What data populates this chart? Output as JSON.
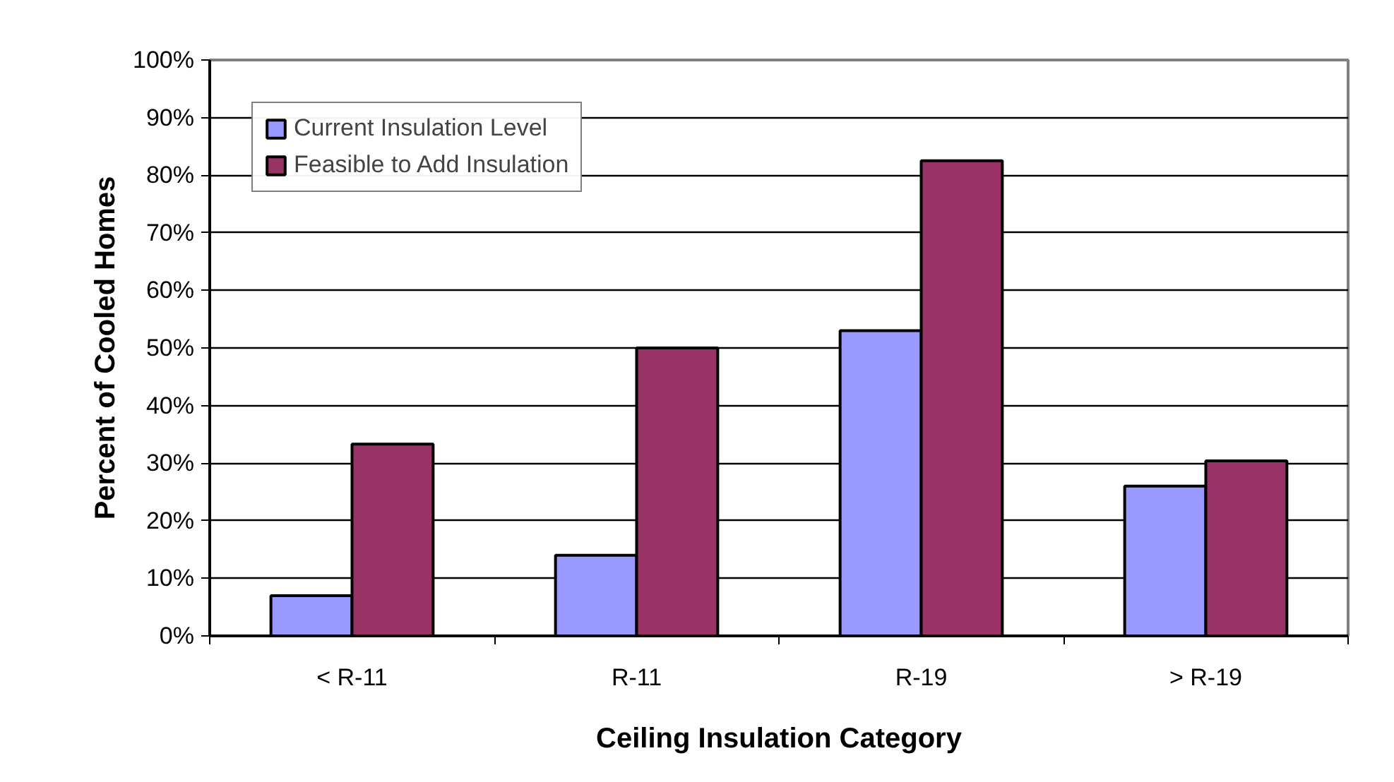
{
  "chart_data": {
    "type": "bar",
    "xlabel": "Ceiling Insulation Category",
    "ylabel": "Percent of Cooled Homes",
    "categories": [
      "< R-11",
      "R-11",
      "R-19",
      "> R-19"
    ],
    "series": [
      {
        "name": "Current Insulation Level",
        "color": "#9999ff",
        "values": [
          7,
          14,
          53,
          26
        ]
      },
      {
        "name": "Feasible to Add Insulation",
        "color": "#993366",
        "values": [
          33.3,
          50,
          82.5,
          30.4
        ]
      }
    ],
    "ylim": [
      0,
      100
    ],
    "yticks": [
      {
        "value": 0,
        "label": "0%"
      },
      {
        "value": 10,
        "label": "10%"
      },
      {
        "value": 20,
        "label": "20%"
      },
      {
        "value": 30,
        "label": "30%"
      },
      {
        "value": 40,
        "label": "40%"
      },
      {
        "value": 50,
        "label": "50%"
      },
      {
        "value": 60,
        "label": "60%"
      },
      {
        "value": 70,
        "label": "70%"
      },
      {
        "value": 80,
        "label": "80%"
      },
      {
        "value": 90,
        "label": "90%"
      },
      {
        "value": 100,
        "label": "100%"
      }
    ],
    "grid": "y",
    "legend": "top left"
  }
}
